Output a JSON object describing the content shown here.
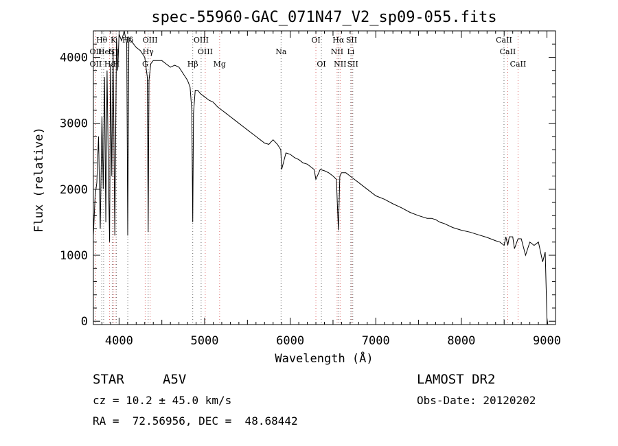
{
  "chart_data": {
    "type": "line",
    "title": "spec-55960-GAC_071N47_V2_sp09-055.fits",
    "xlabel": "Wavelength (Å)",
    "ylabel": "Flux (relative)",
    "xlim": [
      3700,
      9100
    ],
    "ylim": [
      -50,
      4400
    ],
    "xticks": [
      4000,
      5000,
      6000,
      7000,
      8000,
      9000
    ],
    "yticks": [
      0,
      1000,
      2000,
      3000,
      4000
    ],
    "grid": false,
    "series": [
      {
        "x": [
          3700,
          3720,
          3740,
          3760,
          3780,
          3800,
          3815,
          3830,
          3845,
          3860,
          3875,
          3889,
          3900,
          3915,
          3930,
          3950,
          3970,
          3985,
          4000,
          4030,
          4060,
          4090,
          4101,
          4115,
          4140,
          4170,
          4200,
          4250,
          4300,
          4330,
          4340,
          4350,
          4370,
          4400,
          4450,
          4500,
          4550,
          4600,
          4650,
          4700,
          4750,
          4800,
          4830,
          4850,
          4861,
          4870,
          4890,
          4920,
          4950,
          5000,
          5050,
          5100,
          5150,
          5200,
          5250,
          5300,
          5350,
          5400,
          5450,
          5500,
          5550,
          5600,
          5650,
          5700,
          5750,
          5800,
          5850,
          5890,
          5900,
          5950,
          6000,
          6050,
          6100,
          6150,
          6200,
          6250,
          6280,
          6300,
          6350,
          6400,
          6450,
          6500,
          6540,
          6563,
          6580,
          6600,
          6650,
          6700,
          6750,
          6800,
          6900,
          7000,
          7100,
          7200,
          7300,
          7400,
          7500,
          7600,
          7650,
          7700,
          7750,
          7800,
          7900,
          8000,
          8100,
          8200,
          8300,
          8400,
          8450,
          8500,
          8520,
          8542,
          8560,
          8600,
          8620,
          8662,
          8700,
          8750,
          8800,
          8850,
          8900,
          8950,
          8980,
          9000,
          9010
        ],
        "values": [
          1300,
          1900,
          2100,
          2800,
          1400,
          3100,
          2000,
          3700,
          1500,
          3800,
          2300,
          1200,
          3900,
          2200,
          4100,
          1300,
          4300,
          3800,
          4350,
          4250,
          4400,
          4200,
          1300,
          4300,
          4250,
          4200,
          4150,
          4100,
          4000,
          3700,
          1350,
          3650,
          3900,
          3950,
          3950,
          3950,
          3900,
          3850,
          3880,
          3850,
          3750,
          3650,
          3550,
          3200,
          1500,
          3150,
          3500,
          3500,
          3450,
          3400,
          3350,
          3320,
          3250,
          3200,
          3150,
          3100,
          3050,
          3000,
          2950,
          2900,
          2850,
          2800,
          2750,
          2700,
          2680,
          2750,
          2680,
          2600,
          2300,
          2550,
          2530,
          2480,
          2450,
          2400,
          2380,
          2330,
          2300,
          2150,
          2300,
          2280,
          2250,
          2200,
          2150,
          1380,
          2200,
          2250,
          2250,
          2200,
          2150,
          2100,
          2000,
          1900,
          1850,
          1780,
          1720,
          1650,
          1600,
          1560,
          1560,
          1540,
          1500,
          1480,
          1420,
          1380,
          1350,
          1310,
          1270,
          1220,
          1200,
          1150,
          1280,
          1150,
          1280,
          1280,
          1100,
          1250,
          1250,
          1000,
          1200,
          1150,
          1200,
          900,
          1050,
          50,
          -50
        ]
      }
    ],
    "line_markers": [
      {
        "label": "Hθ",
        "wl": 3798,
        "row": 1
      },
      {
        "label": "K",
        "wl": 3934,
        "row": 1
      },
      {
        "label": "Hδ",
        "wl": 4102,
        "row": 1
      },
      {
        "label": "OIII",
        "wl": 4363,
        "row": 1
      },
      {
        "label": "OIII",
        "wl": 4959,
        "row": 1
      },
      {
        "label": "OI",
        "wl": 6300,
        "row": 1
      },
      {
        "label": "Hα",
        "wl": 6563,
        "row": 1
      },
      {
        "label": "SII",
        "wl": 6717,
        "row": 1
      },
      {
        "label": "CaII",
        "wl": 8498,
        "row": 1
      },
      {
        "label": "OII",
        "wl": 3727,
        "row": 2
      },
      {
        "label": "He",
        "wl": 3820,
        "row": 2
      },
      {
        "label": "I",
        "wl": 3889,
        "row": 2
      },
      {
        "label": "S",
        "wl": 3920,
        "row": 2
      },
      {
        "label": "□",
        "wl": 3955,
        "row": 2
      },
      {
        "label": "Hγ",
        "wl": 4340,
        "row": 2
      },
      {
        "label": "OIII",
        "wl": 5007,
        "row": 2
      },
      {
        "label": "Na",
        "wl": 5893,
        "row": 2
      },
      {
        "label": "NII",
        "wl": 6548,
        "row": 2
      },
      {
        "label": "Li",
        "wl": 6708,
        "row": 2
      },
      {
        "label": "CaII",
        "wl": 8542,
        "row": 2
      },
      {
        "label": "OII",
        "wl": 3727,
        "row": 3
      },
      {
        "label": "Hε",
        "wl": 3889,
        "row": 3
      },
      {
        "label": "H",
        "wl": 3968,
        "row": 3
      },
      {
        "label": "G",
        "wl": 4305,
        "row": 3
      },
      {
        "label": "Hβ",
        "wl": 4861,
        "row": 3
      },
      {
        "label": "Mg",
        "wl": 5175,
        "row": 3
      },
      {
        "label": "OI",
        "wl": 6364,
        "row": 3
      },
      {
        "label": "NII",
        "wl": 6583,
        "row": 3
      },
      {
        "label": "SII",
        "wl": 6731,
        "row": 3
      },
      {
        "label": "CaII",
        "wl": 8662,
        "row": 3
      }
    ]
  },
  "info": {
    "class_label": "STAR",
    "subclass": "A5V",
    "survey": "LAMOST DR2",
    "cz": "cz = 10.2 ± 45.0 km/s",
    "obs_date": "Obs-Date: 20120202",
    "coords": "RA =  72.56956, DEC =  48.68442"
  }
}
